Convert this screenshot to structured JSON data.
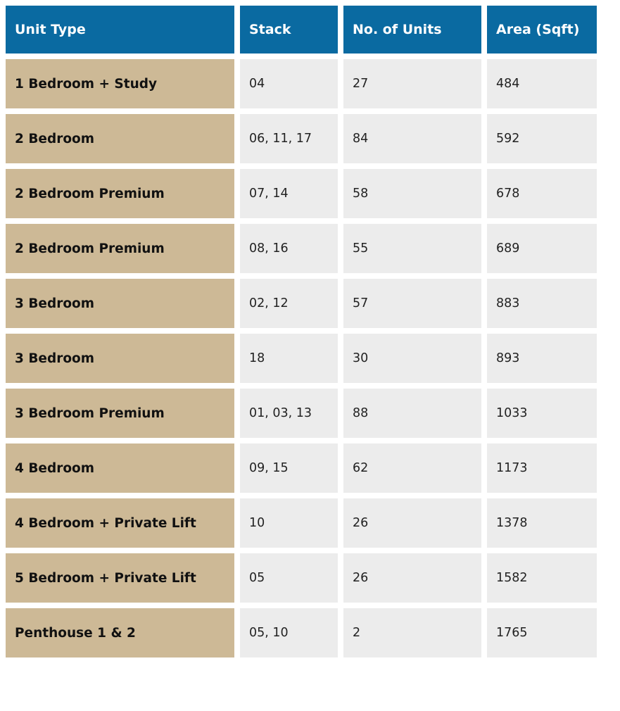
{
  "table": {
    "headers": [
      "Unit Type",
      "Stack",
      "No. of Units",
      "Area (Sqft)"
    ],
    "rows": [
      {
        "unit_type": "1 Bedroom + Study",
        "stack": "04",
        "units": "27",
        "area": "484"
      },
      {
        "unit_type": "2 Bedroom",
        "stack": "06, 11, 17",
        "units": "84",
        "area": "592"
      },
      {
        "unit_type": "2 Bedroom Premium",
        "stack": "07, 14",
        "units": "58",
        "area": "678"
      },
      {
        "unit_type": "2 Bedroom Premium",
        "stack": "08, 16",
        "units": "55",
        "area": "689"
      },
      {
        "unit_type": "3 Bedroom",
        "stack": "02, 12",
        "units": "57",
        "area": "883"
      },
      {
        "unit_type": "3 Bedroom",
        "stack": "18",
        "units": "30",
        "area": "893"
      },
      {
        "unit_type": "3 Bedroom Premium",
        "stack": "01, 03, 13",
        "units": "88",
        "area": "1033"
      },
      {
        "unit_type": "4 Bedroom",
        "stack": "09, 15",
        "units": "62",
        "area": "1173"
      },
      {
        "unit_type": "4 Bedroom + Private Lift",
        "stack": "10",
        "units": "26",
        "area": "1378"
      },
      {
        "unit_type": "5 Bedroom + Private Lift",
        "stack": "05",
        "units": "26",
        "area": "1582"
      },
      {
        "unit_type": "Penthouse 1 & 2",
        "stack": "05, 10",
        "units": "2",
        "area": "1765"
      }
    ]
  },
  "colors": {
    "header_bg": "#0a6aa1",
    "header_text": "#ffffff",
    "type_cell_bg": "#cdb996",
    "data_cell_bg": "#ececec"
  }
}
